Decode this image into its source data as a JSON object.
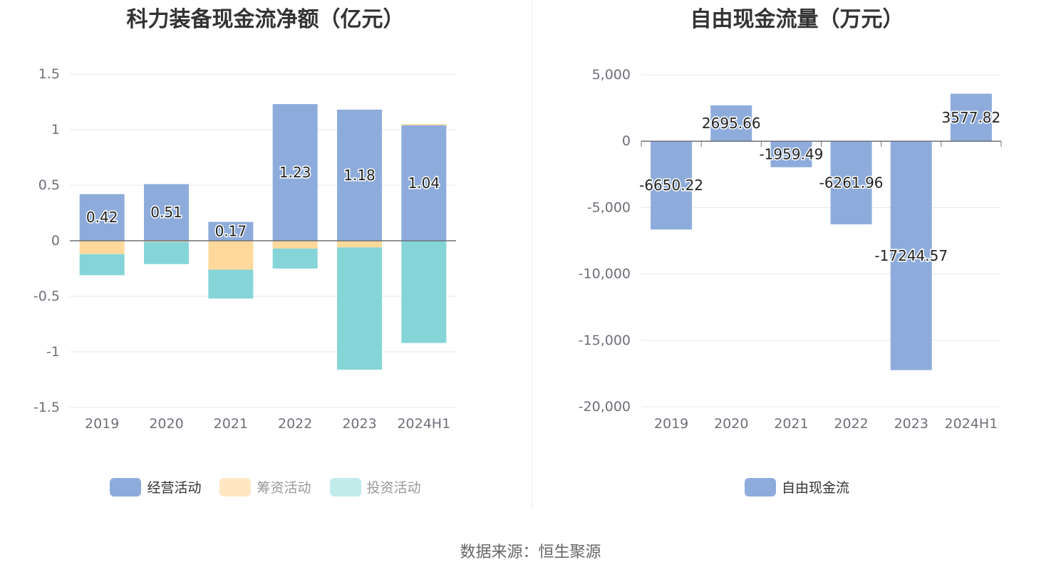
{
  "chart_data": [
    {
      "type": "bar",
      "stacked": true,
      "title": "科力装备现金流净额（亿元）",
      "categories": [
        "2019",
        "2020",
        "2021",
        "2022",
        "2023",
        "2024H1"
      ],
      "ylim": [
        -1.5,
        1.5
      ],
      "yticks": [
        1.5,
        1,
        0.5,
        0,
        -0.5,
        -1,
        -1.5
      ],
      "ytick_labels": [
        "1.5",
        "1",
        "0.5",
        "0",
        "-0.5",
        "-1",
        "-1.5"
      ],
      "grid": true,
      "legend_position": "bottom",
      "series": [
        {
          "name": "经营活动",
          "color": "#8eacdb",
          "values": [
            0.42,
            0.51,
            0.17,
            1.23,
            1.18,
            1.04
          ],
          "labels": [
            "0.42",
            "0.51",
            "0.17",
            "1.23",
            "1.18",
            "1.04"
          ]
        },
        {
          "name": "筹资活动",
          "color": "#ffd99c",
          "values": [
            -0.12,
            -0.01,
            -0.26,
            -0.07,
            -0.06,
            0.01
          ]
        },
        {
          "name": "投资活动",
          "color": "#85d5d8",
          "values": [
            -0.19,
            -0.2,
            -0.26,
            -0.18,
            -1.1,
            -0.92
          ]
        }
      ]
    },
    {
      "type": "bar",
      "title": "自由现金流量（万元）",
      "categories": [
        "2019",
        "2020",
        "2021",
        "2022",
        "2023",
        "2024H1"
      ],
      "ylim": [
        -20000,
        5000
      ],
      "yticks": [
        5000,
        0,
        -5000,
        -10000,
        -15000,
        -20000
      ],
      "ytick_labels": [
        "5,000",
        "0",
        "-5,000",
        "-10,000",
        "-15,000",
        "-20,000"
      ],
      "grid": true,
      "legend_position": "bottom",
      "series": [
        {
          "name": "自由现金流",
          "color": "#8eacdb",
          "values": [
            -6650.22,
            2695.66,
            -1959.49,
            -6261.96,
            -17244.57,
            3577.82
          ],
          "labels": [
            "-6650.22",
            "2695.66",
            "-1959.49",
            "-6261.96",
            "-17244.57",
            "3577.82"
          ]
        }
      ]
    }
  ],
  "legend_left": [
    {
      "label": "经营活动",
      "color": "#8eacdb"
    },
    {
      "label": "筹资活动",
      "color": "#ffe7c4"
    },
    {
      "label": "投资活动",
      "color": "#c2ebec"
    }
  ],
  "legend_right": [
    {
      "label": "自由现金流",
      "color": "#8eacdb"
    }
  ],
  "source": "数据来源：恒生聚源"
}
